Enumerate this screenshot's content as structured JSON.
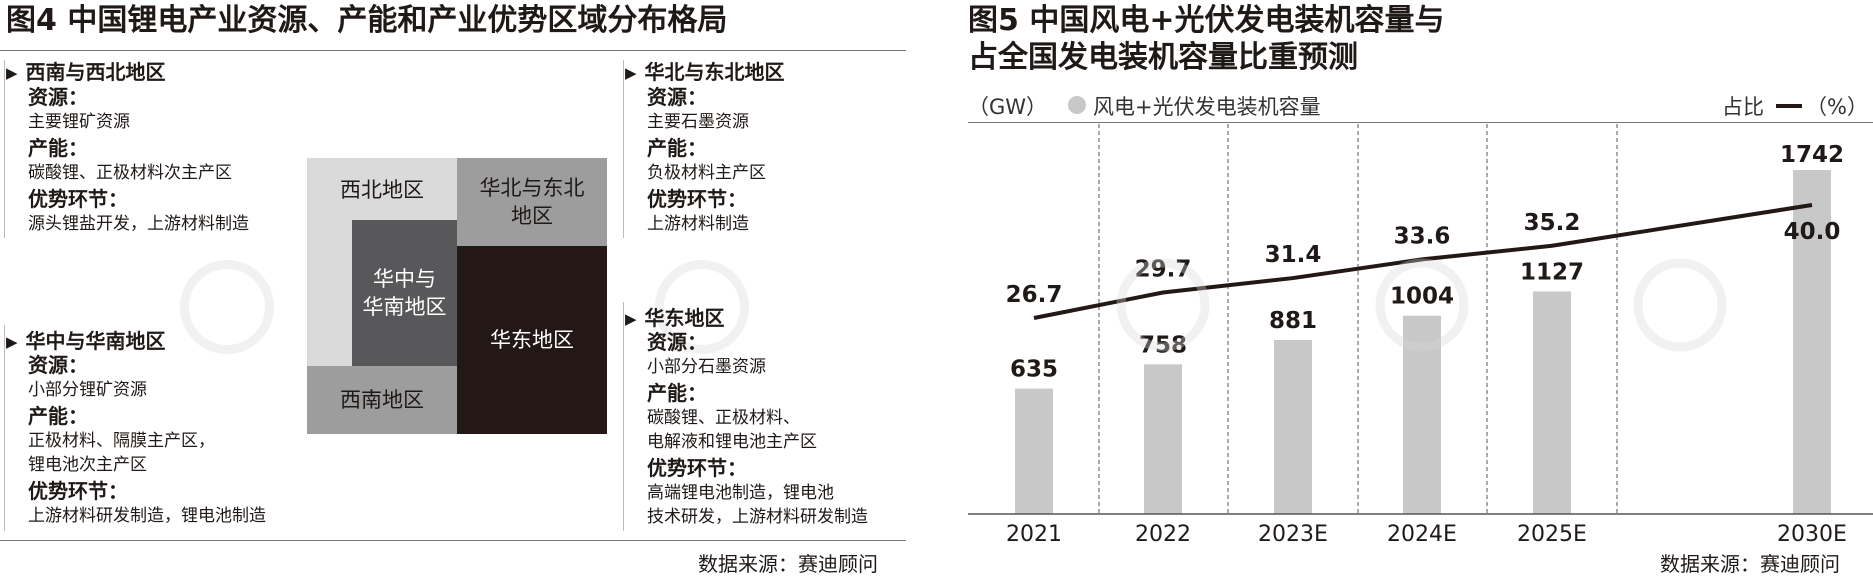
{
  "fig4": {
    "title": "图4 中国锂电产业资源、产能和产业优势区域分布格局",
    "source": "数据来源：赛迪顾问",
    "regions": [
      {
        "name": "西南与西北地区",
        "res_label": "资源：",
        "res": "主要锂矿资源",
        "cap_label": "产能：",
        "cap": [
          "碳酸锂、正极材料次主产区"
        ],
        "adv_label": "优势环节：",
        "adv": [
          "源头锂盐开发，上游材料制造"
        ]
      },
      {
        "name": "华北与东北地区",
        "res_label": "资源：",
        "res": "主要石墨资源",
        "cap_label": "产能：",
        "cap": [
          "负极材料主产区"
        ],
        "adv_label": "优势环节：",
        "adv": [
          "上游材料制造"
        ]
      },
      {
        "name": "华中与华南地区",
        "res_label": "资源：",
        "res": "小部分锂矿资源",
        "cap_label": "产能：",
        "cap": [
          "正极材料、隔膜主产区，",
          "锂电池次主产区"
        ],
        "adv_label": "优势环节：",
        "adv": [
          "上游材料研发制造，锂电池制造"
        ]
      },
      {
        "name": "华东地区",
        "res_label": "资源：",
        "res": "小部分石墨资源",
        "cap_label": "产能：",
        "cap": [
          "碳酸锂、正极材料、",
          "电解液和锂电池主产区"
        ],
        "adv_label": "优势环节：",
        "adv": [
          "高端锂电池制造，锂电池",
          "技术研发，上游材料研发制造"
        ]
      }
    ],
    "map": {
      "northwest": "西北地区",
      "north_ne": [
        "华北与东北",
        "地区"
      ],
      "central_south": [
        "华中与",
        "华南地区"
      ],
      "east": "华东地区",
      "southwest": "西南地区"
    }
  },
  "fig5": {
    "title_lines": [
      "图5  中国风电+光伏发电装机容量与",
      "占全国发电装机容量比重预测"
    ],
    "unit_left": "（GW）",
    "legend_bar": "风电+光伏发电装机容量",
    "legend_line": "占比",
    "unit_right": "（%）",
    "source": "数据来源：赛迪顾问"
  },
  "chart_data": {
    "type": "bar",
    "categories": [
      "2021",
      "2022",
      "2023E",
      "2024E",
      "2025E",
      "2030E"
    ],
    "series": [
      {
        "name": "风电+光伏发电装机容量",
        "type": "bar",
        "unit": "GW",
        "values": [
          635,
          758,
          881,
          1004,
          1127,
          1742
        ]
      },
      {
        "name": "占比",
        "type": "line",
        "unit": "%",
        "values": [
          26.7,
          29.7,
          31.4,
          33.6,
          35.2,
          40.0
        ]
      }
    ],
    "colors": {
      "bar": "#c8c8c9",
      "line": "#231815",
      "grid": "#555555"
    },
    "grid": "vertical dashed separators"
  },
  "colors": {
    "map_light": "#dadadb",
    "map_mid": "#9d9d9e",
    "map_dark": "#58585a",
    "map_black": "#231815"
  }
}
